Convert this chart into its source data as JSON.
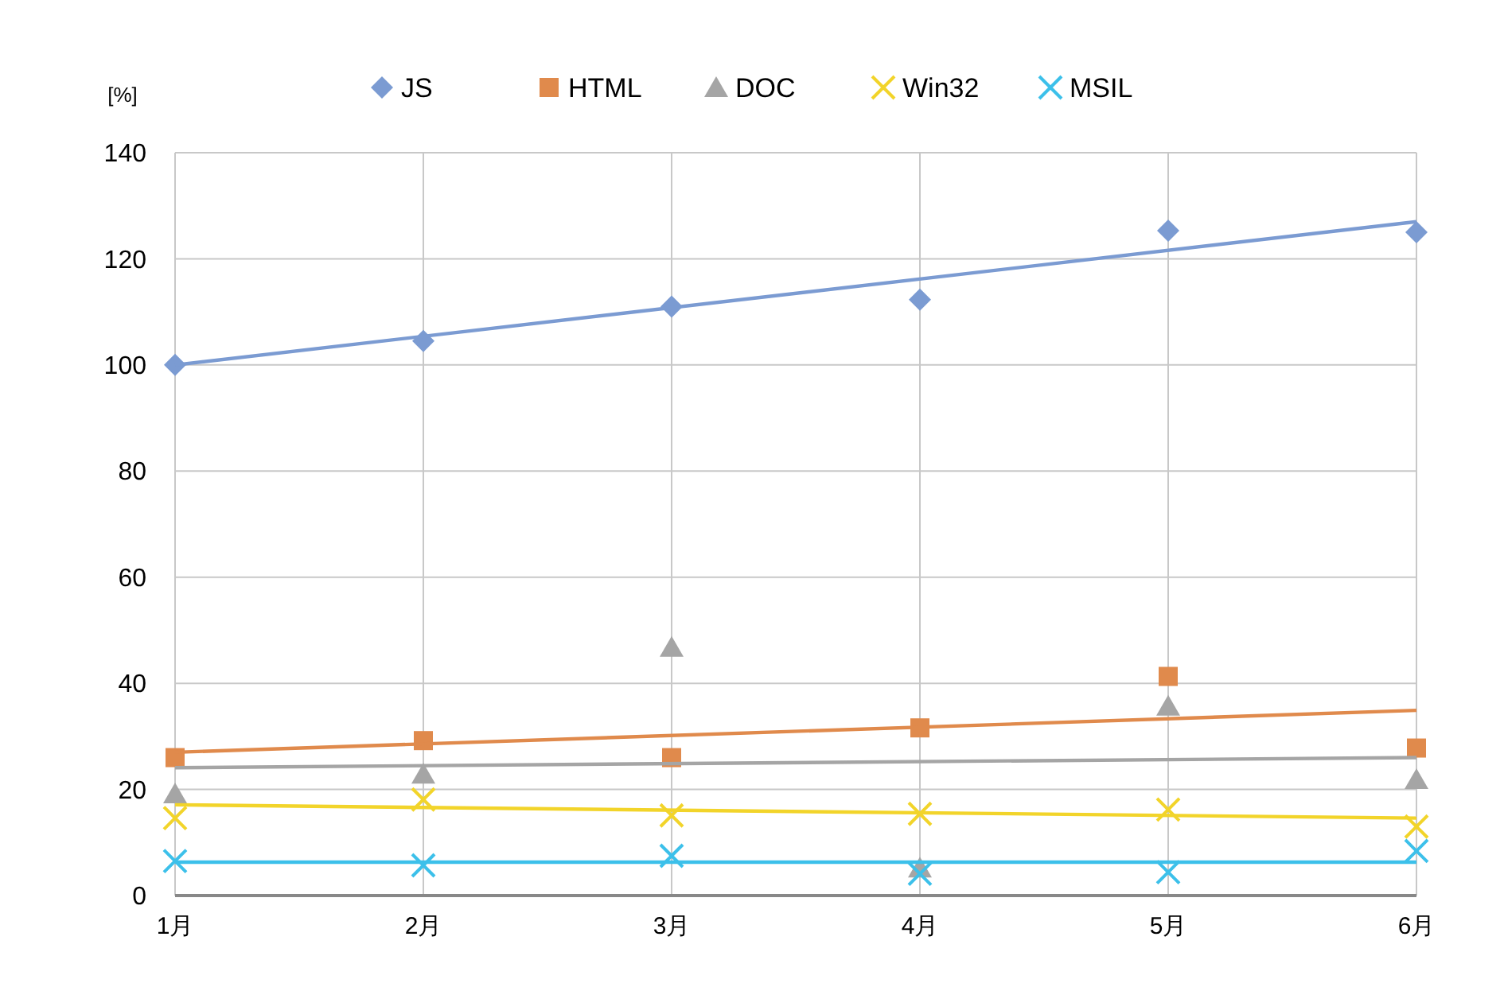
{
  "chart_data": {
    "type": "scatter",
    "ylabel": "[%]",
    "categories": [
      "1月",
      "2月",
      "3月",
      "4月",
      "5月",
      "6月"
    ],
    "ylim": [
      0,
      140
    ],
    "yticks": [
      0,
      20,
      40,
      60,
      80,
      100,
      120,
      140
    ],
    "grid": true,
    "legend": "top",
    "series": [
      {
        "name": "JS",
        "color": "#7b9bd2",
        "marker": "diamond",
        "values": [
          100,
          104.5,
          111,
          112.3,
          125.3,
          125
        ]
      },
      {
        "name": "HTML",
        "color": "#e08a4c",
        "marker": "square",
        "values": [
          26,
          29.2,
          26,
          31.6,
          41.3,
          27.8
        ]
      },
      {
        "name": "DOC",
        "color": "#a5a5a5",
        "marker": "triangle",
        "values": [
          19.2,
          22.9,
          46.8,
          5.2,
          35.7,
          21.9
        ]
      },
      {
        "name": "Win32",
        "color": "#f2d42a",
        "marker": "cross",
        "values": [
          14.6,
          18.1,
          15.1,
          15.4,
          16.2,
          13
        ]
      },
      {
        "name": "MSIL",
        "color": "#3cc0ea",
        "marker": "cross",
        "values": [
          6.5,
          5.7,
          7.5,
          4.1,
          4.4,
          8.4
        ]
      },
      {
        "type": "line",
        "color": "#7b9bd2",
        "x": [
          "1月",
          "6月"
        ],
        "values": [
          100,
          127
        ]
      },
      {
        "type": "line",
        "color": "#e08a4c",
        "x": [
          "1月",
          "6月"
        ],
        "values": [
          27,
          34.9
        ]
      },
      {
        "type": "line",
        "color": "#a5a5a5",
        "x": [
          "1月",
          "6月"
        ],
        "values": [
          24.1,
          26
        ]
      },
      {
        "type": "line",
        "color": "#f2d42a",
        "x": [
          "1月",
          "6月"
        ],
        "values": [
          17.1,
          14.6
        ]
      },
      {
        "type": "line",
        "color": "#3cc0ea",
        "x": [
          "1月",
          "6月"
        ],
        "values": [
          6.3,
          6.3
        ]
      }
    ]
  }
}
